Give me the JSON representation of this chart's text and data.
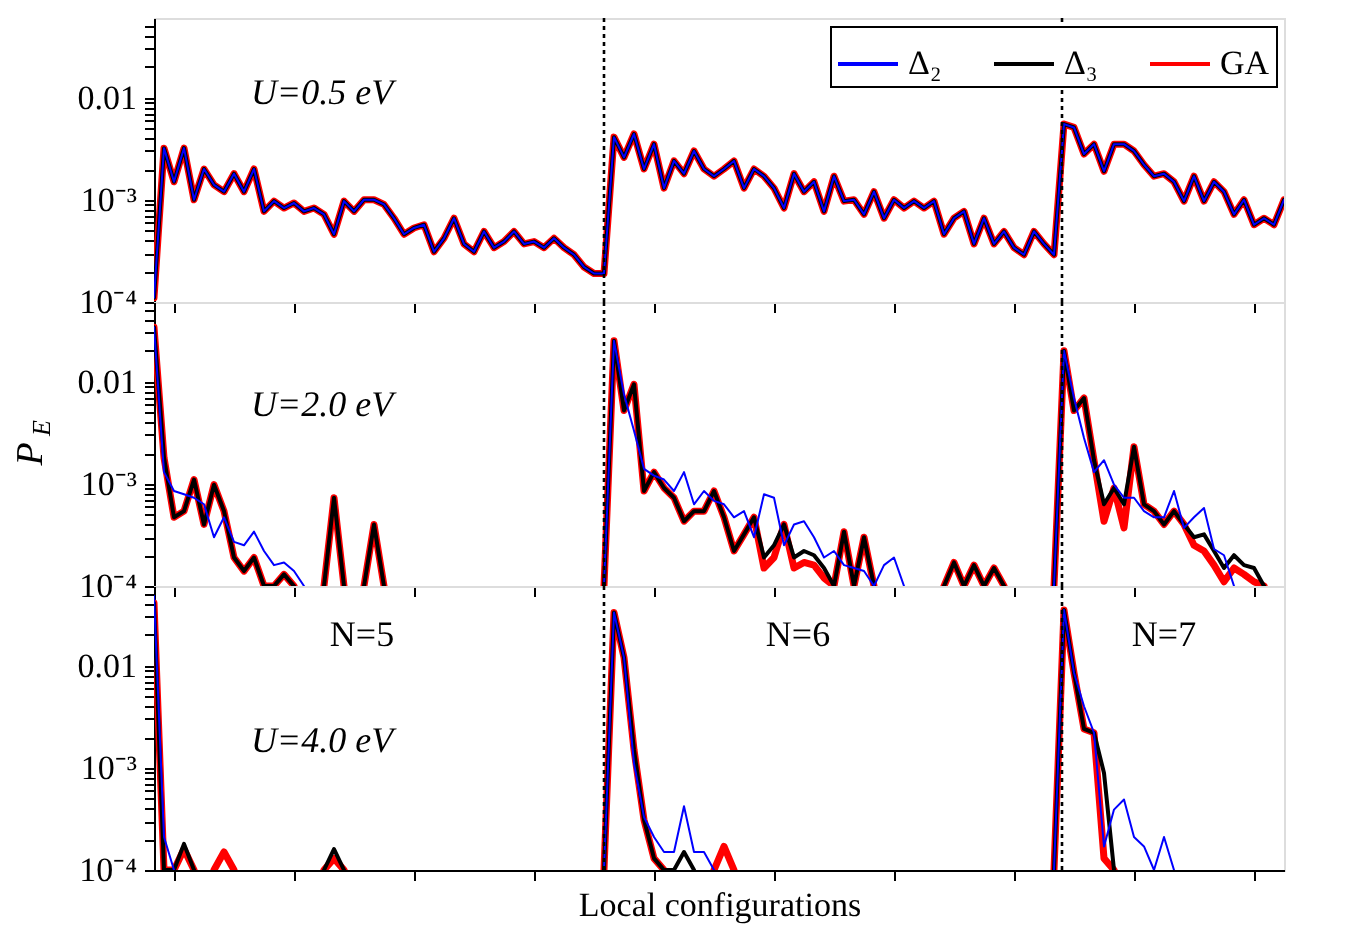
{
  "chart_data": [
    {
      "type": "line",
      "tick_labels": "y",
      "log": true,
      "legend": "top right",
      "ylim": [
        0.0001,
        0.06
      ],
      "categories": [
        null,
        null,
        null,
        null,
        null,
        null,
        null,
        null,
        null,
        null,
        null,
        null,
        null,
        null,
        null,
        null,
        null,
        null,
        null,
        null,
        null,
        null,
        null,
        null,
        null,
        null,
        null,
        null,
        null,
        null,
        null,
        null,
        null,
        null,
        null,
        null,
        null,
        null,
        null,
        null,
        null,
        null,
        null,
        null,
        null,
        null,
        null,
        null,
        null,
        null,
        null,
        null,
        null,
        null,
        null,
        null,
        null,
        null,
        null,
        null,
        null,
        null,
        null,
        null,
        null,
        null,
        null,
        null,
        null,
        null,
        null,
        null,
        null,
        null,
        null,
        null,
        null,
        null,
        null,
        null,
        null,
        null,
        null,
        null,
        null,
        null,
        null,
        null,
        null,
        null,
        null,
        null,
        null,
        null,
        null,
        null,
        null,
        null,
        null,
        null,
        null,
        null,
        null,
        null,
        null,
        null,
        null,
        null,
        null,
        null,
        null,
        null,
        null,
        null
      ],
      "yticks": [
        {
          "value": 0.0001,
          "label": "10⁻⁴"
        },
        {
          "value": 0.0002,
          "label": null
        },
        {
          "value": 0.0003,
          "label": null
        },
        {
          "value": 0.0004,
          "label": null
        },
        {
          "value": 0.0005,
          "label": null
        },
        {
          "value": 0.0006,
          "label": null
        },
        {
          "value": 0.0007,
          "label": null
        },
        {
          "value": 0.0008,
          "label": null
        },
        {
          "value": 0.0009,
          "label": null
        },
        {
          "value": 0.001,
          "label": "10⁻³"
        },
        {
          "value": 0.002,
          "label": null
        },
        {
          "value": 0.003,
          "label": null
        },
        {
          "value": 0.004,
          "label": null
        },
        {
          "value": 0.005,
          "label": null
        },
        {
          "value": 0.006,
          "label": null
        },
        {
          "value": 0.007,
          "label": null
        },
        {
          "value": 0.008,
          "label": null
        },
        {
          "value": 0.009,
          "label": null
        },
        {
          "value": 0.01,
          "label": "0.01"
        },
        {
          "value": 0.02,
          "label": null
        },
        {
          "value": 0.03,
          "label": null
        },
        {
          "value": 0.04,
          "label": null
        },
        {
          "value": 0.05,
          "label": null
        }
      ],
      "annotations": [
        "U=0.5 eV"
      ],
      "series": [
        {
          "name": "Δ₂",
          "color": "#0000ff",
          "values": [
            0.00011,
            0.0032,
            0.0015,
            0.0032,
            0.001,
            0.002,
            0.0014,
            0.0012,
            0.0018,
            0.0012,
            0.002,
            0.00077,
            0.00097,
            0.00083,
            0.00093,
            0.00077,
            0.00083,
            0.00072,
            0.00046,
            0.00097,
            0.00077,
            0.001,
            0.001,
            0.0009,
            0.00066,
            0.00046,
            0.00053,
            0.00057,
            0.00031,
            0.00042,
            0.00066,
            0.00037,
            0.00031,
            0.00049,
            0.00034,
            0.00039,
            0.00049,
            0.00037,
            0.00039,
            0.00034,
            0.00042,
            0.00034,
            0.00029,
            0.00022,
            0.00019,
            0.00019,
            0.0041,
            0.0026,
            0.0044,
            0.002,
            0.0035,
            0.0013,
            0.0024,
            0.0018,
            0.003,
            0.002,
            0.0017,
            0.002,
            0.0024,
            0.0013,
            0.002,
            0.0017,
            0.0013,
            0.00083,
            0.0018,
            0.0012,
            0.0015,
            0.00077,
            0.0017,
            0.00097,
            0.001,
            0.00072,
            0.0012,
            0.00066,
            0.001,
            0.00083,
            0.00097,
            0.00083,
            0.00097,
            0.00046,
            0.00066,
            0.00077,
            0.00037,
            0.00066,
            0.00037,
            0.00049,
            0.00034,
            0.00029,
            0.00049,
            0.00037,
            0.00029,
            0.0055,
            0.0051,
            0.0028,
            0.0035,
            0.0019,
            0.0035,
            0.0035,
            0.003,
            0.0022,
            0.0017,
            0.0018,
            0.0015,
            0.00097,
            0.0017,
            0.00097,
            0.0015,
            0.0012,
            0.00072,
            0.001,
            0.00057,
            0.00066,
            0.00057,
            0.001
          ]
        },
        {
          "name": "Δ₃",
          "color": "#000000",
          "values": [
            0.00011,
            0.0032,
            0.0015,
            0.0032,
            0.001,
            0.002,
            0.0014,
            0.0012,
            0.0018,
            0.0012,
            0.002,
            0.00077,
            0.00097,
            0.00083,
            0.00093,
            0.00077,
            0.00083,
            0.00072,
            0.00046,
            0.00097,
            0.00077,
            0.001,
            0.001,
            0.0009,
            0.00066,
            0.00046,
            0.00053,
            0.00057,
            0.00031,
            0.00042,
            0.00066,
            0.00037,
            0.00031,
            0.00049,
            0.00034,
            0.00039,
            0.00049,
            0.00037,
            0.00039,
            0.00034,
            0.00042,
            0.00034,
            0.00029,
            0.00022,
            0.00019,
            0.00019,
            0.0041,
            0.0026,
            0.0044,
            0.002,
            0.0035,
            0.0013,
            0.0024,
            0.0018,
            0.003,
            0.002,
            0.0017,
            0.002,
            0.0024,
            0.0013,
            0.002,
            0.0017,
            0.0013,
            0.00083,
            0.0018,
            0.0012,
            0.0015,
            0.00077,
            0.0017,
            0.00097,
            0.001,
            0.00072,
            0.0012,
            0.00066,
            0.001,
            0.00083,
            0.00097,
            0.00083,
            0.00097,
            0.00046,
            0.00066,
            0.00077,
            0.00037,
            0.00066,
            0.00037,
            0.00049,
            0.00034,
            0.00029,
            0.00049,
            0.00037,
            0.00029,
            0.0055,
            0.0051,
            0.0028,
            0.0035,
            0.0019,
            0.0035,
            0.0035,
            0.003,
            0.0022,
            0.0017,
            0.0018,
            0.0015,
            0.00097,
            0.0017,
            0.00097,
            0.0015,
            0.0012,
            0.00072,
            0.001,
            0.00057,
            0.00066,
            0.00057,
            0.001
          ]
        },
        {
          "name": "GA",
          "color": "#ff0000",
          "values": [
            0.00011,
            0.0032,
            0.0015,
            0.0032,
            0.001,
            0.002,
            0.0014,
            0.0012,
            0.0018,
            0.0012,
            0.002,
            0.00077,
            0.00097,
            0.00083,
            0.00093,
            0.00077,
            0.00083,
            0.00072,
            0.00046,
            0.00097,
            0.00077,
            0.001,
            0.001,
            0.0009,
            0.00066,
            0.00046,
            0.00053,
            0.00057,
            0.00031,
            0.00042,
            0.00066,
            0.00037,
            0.00031,
            0.00049,
            0.00034,
            0.00039,
            0.00049,
            0.00037,
            0.00039,
            0.00034,
            0.00042,
            0.00034,
            0.00029,
            0.00022,
            0.00019,
            0.00019,
            0.0041,
            0.0026,
            0.0044,
            0.002,
            0.0035,
            0.0013,
            0.0024,
            0.0018,
            0.003,
            0.002,
            0.0017,
            0.002,
            0.0024,
            0.0013,
            0.002,
            0.0017,
            0.0013,
            0.00083,
            0.0018,
            0.0012,
            0.0015,
            0.00077,
            0.0017,
            0.00097,
            0.001,
            0.00072,
            0.0012,
            0.00066,
            0.001,
            0.00083,
            0.00097,
            0.00083,
            0.00097,
            0.00046,
            0.00066,
            0.00077,
            0.00037,
            0.00066,
            0.00037,
            0.00049,
            0.00034,
            0.00029,
            0.00049,
            0.00037,
            0.00029,
            0.0055,
            0.0051,
            0.0028,
            0.0035,
            0.0019,
            0.0035,
            0.0035,
            0.003,
            0.0022,
            0.0017,
            0.0018,
            0.0015,
            0.00097,
            0.0017,
            0.00097,
            0.0015,
            0.0012,
            0.00072,
            0.001,
            0.00057,
            0.00066,
            0.00057,
            0.001
          ]
        }
      ]
    },
    {
      "type": "line",
      "tick_labels": "y",
      "log": true,
      "ylabel": "P$_{E}$",
      "ylim": [
        0.0001,
        0.06
      ],
      "categories": [
        null,
        null,
        null,
        null,
        null,
        null,
        null,
        null,
        null,
        null,
        null,
        null,
        null,
        null,
        null,
        null,
        null,
        null,
        null,
        null,
        null,
        null,
        null,
        null,
        null,
        null,
        null,
        null,
        null,
        null,
        null,
        null,
        null,
        null,
        null,
        null,
        null,
        null,
        null,
        null,
        null,
        null,
        null,
        null,
        null,
        null,
        null,
        null,
        null,
        null,
        null,
        null,
        null,
        null,
        null,
        null,
        null,
        null,
        null,
        null,
        null,
        null,
        null,
        null,
        null,
        null,
        null,
        null,
        null,
        null,
        null,
        null,
        null,
        null,
        null,
        null,
        null,
        null,
        null,
        null,
        null,
        null,
        null,
        null,
        null,
        null,
        null,
        null,
        null,
        null,
        null,
        null,
        null,
        null,
        null,
        null,
        null,
        null,
        null,
        null,
        null,
        null,
        null,
        null,
        null,
        null,
        null,
        null,
        null,
        null,
        null,
        null,
        null,
        null
      ],
      "yticks": [
        {
          "value": 0.0001,
          "label": "10⁻⁴"
        },
        {
          "value": 0.0002,
          "label": null
        },
        {
          "value": 0.0003,
          "label": null
        },
        {
          "value": 0.0004,
          "label": null
        },
        {
          "value": 0.0005,
          "label": null
        },
        {
          "value": 0.0006,
          "label": null
        },
        {
          "value": 0.0007,
          "label": null
        },
        {
          "value": 0.0008,
          "label": null
        },
        {
          "value": 0.0009,
          "label": null
        },
        {
          "value": 0.001,
          "label": "10⁻³"
        },
        {
          "value": 0.002,
          "label": null
        },
        {
          "value": 0.003,
          "label": null
        },
        {
          "value": 0.004,
          "label": null
        },
        {
          "value": 0.005,
          "label": null
        },
        {
          "value": 0.006,
          "label": null
        },
        {
          "value": 0.007,
          "label": null
        },
        {
          "value": 0.008,
          "label": null
        },
        {
          "value": 0.009,
          "label": null
        },
        {
          "value": 0.01,
          "label": "0.01"
        },
        {
          "value": 0.02,
          "label": null
        },
        {
          "value": 0.03,
          "label": null
        },
        {
          "value": 0.04,
          "label": null
        },
        {
          "value": 0.05,
          "label": null
        }
      ],
      "annotations": [
        "U=2.0 eV"
      ],
      "series": [
        {
          "color": "#0000ff",
          "values": [
            0.034,
            0.0013,
            0.00085,
            0.00079,
            0.00073,
            0.00063,
            0.0003,
            0.00047,
            0.00027,
            0.00025,
            0.00034,
            0.00022,
            0.00016,
            0.00017,
            0.00014,
            0.0001,
            null,
            null,
            null,
            null,
            null,
            null,
            null,
            null,
            null,
            null,
            null,
            null,
            null,
            null,
            null,
            null,
            null,
            null,
            null,
            null,
            null,
            null,
            null,
            null,
            null,
            null,
            null,
            null,
            null,
            0.0001,
            0.025,
            0.0075,
            0.0033,
            0.0014,
            0.0012,
            0.0011,
            0.00085,
            0.0013,
            0.00063,
            0.00085,
            0.00068,
            0.00063,
            0.00047,
            0.00054,
            0.0003,
            0.00079,
            0.00073,
            0.00025,
            0.0004,
            0.00043,
            0.0003,
            0.00019,
            0.00022,
            0.00016,
            0.00015,
            0.00014,
            0.0001,
            0.00016,
            0.00019,
            0.0001,
            null,
            null,
            null,
            null,
            null,
            null,
            null,
            null,
            null,
            null,
            null,
            null,
            null,
            null,
            0.0001,
            0.02,
            0.0069,
            0.0028,
            0.0013,
            0.0017,
            0.00098,
            0.00073,
            0.00073,
            0.00054,
            0.00047,
            0.00047,
            0.00085,
            0.00037,
            0.00047,
            0.00058,
            0.00023,
            0.0002,
            0.0001,
            null,
            null,
            null,
            null,
            null
          ]
        },
        {
          "color": "#000000",
          "values": [
            0.034,
            0.0018,
            0.00047,
            0.00054,
            0.0011,
            0.0004,
            0.00098,
            0.00054,
            0.00019,
            0.00014,
            0.00019,
            0.0001,
            0.0001,
            0.00013,
            0.0001,
            null,
            null,
            0.0001,
            0.00073,
            0.0001,
            null,
            0.0001,
            0.0004,
            0.0001,
            null,
            null,
            null,
            null,
            null,
            null,
            null,
            null,
            null,
            null,
            null,
            null,
            null,
            null,
            null,
            null,
            null,
            null,
            null,
            null,
            null,
            0.0001,
            0.025,
            0.0052,
            0.0094,
            0.00085,
            0.0013,
            0.00091,
            0.00073,
            0.00043,
            0.00054,
            0.00054,
            0.00085,
            0.00047,
            0.00022,
            0.00032,
            0.00047,
            0.00019,
            0.00025,
            0.0004,
            0.00019,
            0.00022,
            0.0002,
            0.00015,
            0.0001,
            0.00034,
            0.0001,
            0.0003,
            0.0001,
            null,
            null,
            null,
            null,
            null,
            null,
            0.0001,
            0.00017,
            0.0001,
            0.00016,
            0.0001,
            0.00015,
            0.0001,
            null,
            null,
            null,
            null,
            0.0001,
            0.02,
            0.0052,
            0.0069,
            0.0017,
            0.00063,
            0.00091,
            0.00063,
            0.0023,
            0.00063,
            0.00054,
            0.0004,
            0.00054,
            0.0004,
            0.0003,
            0.00032,
            0.00022,
            0.00015,
            0.0002,
            0.00016,
            0.00015,
            0.0001,
            null,
            null
          ]
        },
        {
          "color": "#ff0000",
          "values": [
            0.034,
            0.0018,
            0.00047,
            0.00054,
            0.0011,
            0.0004,
            0.00098,
            0.00054,
            0.00019,
            0.00014,
            0.00019,
            0.0001,
            0.0001,
            0.00013,
            0.0001,
            null,
            null,
            0.0001,
            0.00073,
            0.0001,
            null,
            0.0001,
            0.0004,
            0.0001,
            null,
            null,
            null,
            null,
            null,
            null,
            null,
            null,
            null,
            null,
            null,
            null,
            null,
            null,
            null,
            null,
            null,
            null,
            null,
            null,
            null,
            0.0001,
            0.025,
            0.0052,
            0.0094,
            0.00085,
            0.0013,
            0.00091,
            0.00073,
            0.00043,
            0.00054,
            0.00054,
            0.00085,
            0.00047,
            0.00022,
            0.00032,
            0.00047,
            0.00015,
            0.00019,
            0.0004,
            0.00015,
            0.00017,
            0.00016,
            0.00012,
            0.0001,
            0.00034,
            0.0001,
            0.0003,
            0.0001,
            null,
            null,
            null,
            null,
            null,
            null,
            0.0001,
            0.00017,
            0.0001,
            0.00016,
            0.0001,
            0.00015,
            0.0001,
            null,
            null,
            null,
            null,
            0.0001,
            0.02,
            0.0052,
            0.0069,
            0.0017,
            0.00043,
            0.00091,
            0.00037,
            0.0023,
            0.00063,
            0.00054,
            0.0004,
            0.00054,
            0.0004,
            0.00025,
            0.00022,
            0.00016,
            0.00011,
            0.00015,
            0.00013,
            0.00011,
            0.0001,
            null,
            null
          ]
        }
      ]
    },
    {
      "type": "line",
      "tick_labels": "y",
      "log": true,
      "xlabel": "Local configurations",
      "ylim": [
        0.0001,
        0.06
      ],
      "categories": [
        null,
        null,
        null,
        null,
        null,
        null,
        null,
        null,
        null,
        null,
        null,
        null,
        null,
        null,
        null,
        null,
        null,
        null,
        null,
        null,
        null,
        null,
        null,
        null,
        null,
        null,
        null,
        null,
        null,
        null,
        null,
        null,
        null,
        null,
        null,
        null,
        null,
        null,
        null,
        null,
        null,
        null,
        null,
        null,
        null,
        null,
        null,
        null,
        null,
        null,
        null,
        null,
        null,
        null,
        null,
        null,
        null,
        null,
        null,
        null,
        null,
        null,
        null,
        null,
        null,
        null,
        null,
        null,
        null,
        null,
        null,
        null,
        null,
        null,
        null,
        null,
        null,
        null,
        null,
        null,
        null,
        null,
        null,
        null,
        null,
        null,
        null,
        null,
        null,
        null,
        null,
        null,
        null,
        null,
        null,
        null,
        null,
        null,
        null,
        null,
        null,
        null,
        null,
        null,
        null,
        null,
        null,
        null,
        null,
        null,
        null,
        null,
        null,
        null
      ],
      "yticks": [
        {
          "value": 0.0001,
          "label": "10⁻⁴"
        },
        {
          "value": 0.0002,
          "label": null
        },
        {
          "value": 0.0003,
          "label": null
        },
        {
          "value": 0.0004,
          "label": null
        },
        {
          "value": 0.0005,
          "label": null
        },
        {
          "value": 0.0006,
          "label": null
        },
        {
          "value": 0.0007,
          "label": null
        },
        {
          "value": 0.0008,
          "label": null
        },
        {
          "value": 0.0009,
          "label": null
        },
        {
          "value": 0.001,
          "label": "10⁻³"
        },
        {
          "value": 0.002,
          "label": null
        },
        {
          "value": 0.003,
          "label": null
        },
        {
          "value": 0.004,
          "label": null
        },
        {
          "value": 0.005,
          "label": null
        },
        {
          "value": 0.006,
          "label": null
        },
        {
          "value": 0.007,
          "label": null
        },
        {
          "value": 0.008,
          "label": null
        },
        {
          "value": 0.009,
          "label": null
        },
        {
          "value": 0.01,
          "label": "0.01"
        },
        {
          "value": 0.02,
          "label": null
        },
        {
          "value": 0.03,
          "label": null
        },
        {
          "value": 0.04,
          "label": null
        },
        {
          "value": 0.05,
          "label": null
        }
      ],
      "annotations": [
        "N=5",
        "N=6",
        "N=7",
        "U=4.0 eV"
      ],
      "series": [
        {
          "color": "#0000ff",
          "values": [
            0.048,
            0.00021,
            0.0001,
            null,
            null,
            null,
            null,
            null,
            null,
            null,
            null,
            null,
            null,
            null,
            null,
            null,
            null,
            null,
            null,
            null,
            null,
            null,
            null,
            null,
            null,
            null,
            null,
            null,
            null,
            null,
            null,
            null,
            null,
            null,
            null,
            null,
            null,
            null,
            null,
            null,
            null,
            null,
            null,
            null,
            null,
            0.0001,
            0.033,
            0.012,
            0.0011,
            0.00033,
            0.00021,
            0.00015,
            0.00015,
            0.00042,
            0.00015,
            0.00015,
            0.0001,
            null,
            null,
            null,
            null,
            null,
            null,
            null,
            null,
            null,
            null,
            null,
            null,
            null,
            null,
            null,
            null,
            null,
            null,
            null,
            null,
            null,
            null,
            null,
            null,
            null,
            null,
            null,
            null,
            null,
            null,
            null,
            null,
            null,
            0.0001,
            0.035,
            0.0085,
            0.004,
            0.0022,
            0.00017,
            0.00039,
            0.00049,
            0.00021,
            0.00017,
            0.0001,
            0.00021,
            0.0001,
            null,
            null,
            null,
            null,
            null,
            null,
            null,
            null,
            null,
            null,
            null
          ]
        },
        {
          "color": "#000000",
          "values": [
            0.041,
            0.0001,
            0.0001,
            0.00018,
            0.0001,
            null,
            null,
            null,
            null,
            null,
            null,
            null,
            null,
            null,
            null,
            null,
            null,
            0.0001,
            0.00016,
            0.0001,
            null,
            null,
            null,
            null,
            null,
            null,
            null,
            null,
            null,
            null,
            null,
            null,
            null,
            null,
            null,
            null,
            null,
            null,
            null,
            null,
            null,
            null,
            null,
            null,
            null,
            0.0001,
            0.033,
            0.012,
            0.0015,
            0.00031,
            0.00013,
            0.0001,
            0.0001,
            0.00015,
            0.0001,
            null,
            null,
            null,
            null,
            null,
            null,
            null,
            null,
            null,
            null,
            null,
            null,
            null,
            null,
            null,
            null,
            null,
            null,
            null,
            null,
            null,
            null,
            null,
            null,
            null,
            null,
            null,
            null,
            null,
            null,
            null,
            null,
            null,
            null,
            null,
            0.0001,
            0.035,
            0.0085,
            0.0024,
            0.0022,
            0.00089,
            0.0001,
            null,
            null,
            null,
            null,
            null,
            null,
            null,
            null,
            null,
            null,
            null,
            null,
            null,
            null,
            null,
            null,
            null
          ]
        },
        {
          "color": "#ff0000",
          "values": [
            0.041,
            0.0001,
            0.0001,
            0.00016,
            0.0001,
            null,
            0.0001,
            0.00015,
            0.0001,
            null,
            null,
            null,
            null,
            null,
            null,
            null,
            null,
            0.0001,
            0.00013,
            0.0001,
            null,
            null,
            null,
            null,
            null,
            null,
            null,
            null,
            null,
            null,
            null,
            null,
            null,
            null,
            null,
            null,
            null,
            null,
            null,
            null,
            null,
            null,
            null,
            null,
            null,
            0.0001,
            0.033,
            0.012,
            0.0015,
            0.00031,
            0.00013,
            0.0001,
            null,
            null,
            null,
            null,
            0.0001,
            0.00017,
            0.0001,
            null,
            null,
            null,
            null,
            null,
            null,
            null,
            null,
            null,
            null,
            null,
            null,
            null,
            null,
            null,
            null,
            null,
            null,
            null,
            null,
            null,
            null,
            null,
            null,
            null,
            null,
            null,
            null,
            null,
            null,
            null,
            0.0001,
            0.035,
            0.0085,
            0.0024,
            0.0022,
            0.00013,
            0.0001,
            null,
            null,
            null,
            null,
            null,
            null,
            null,
            null,
            null,
            null,
            null,
            null,
            null,
            null,
            null,
            null,
            null
          ]
        }
      ]
    }
  ]
}
